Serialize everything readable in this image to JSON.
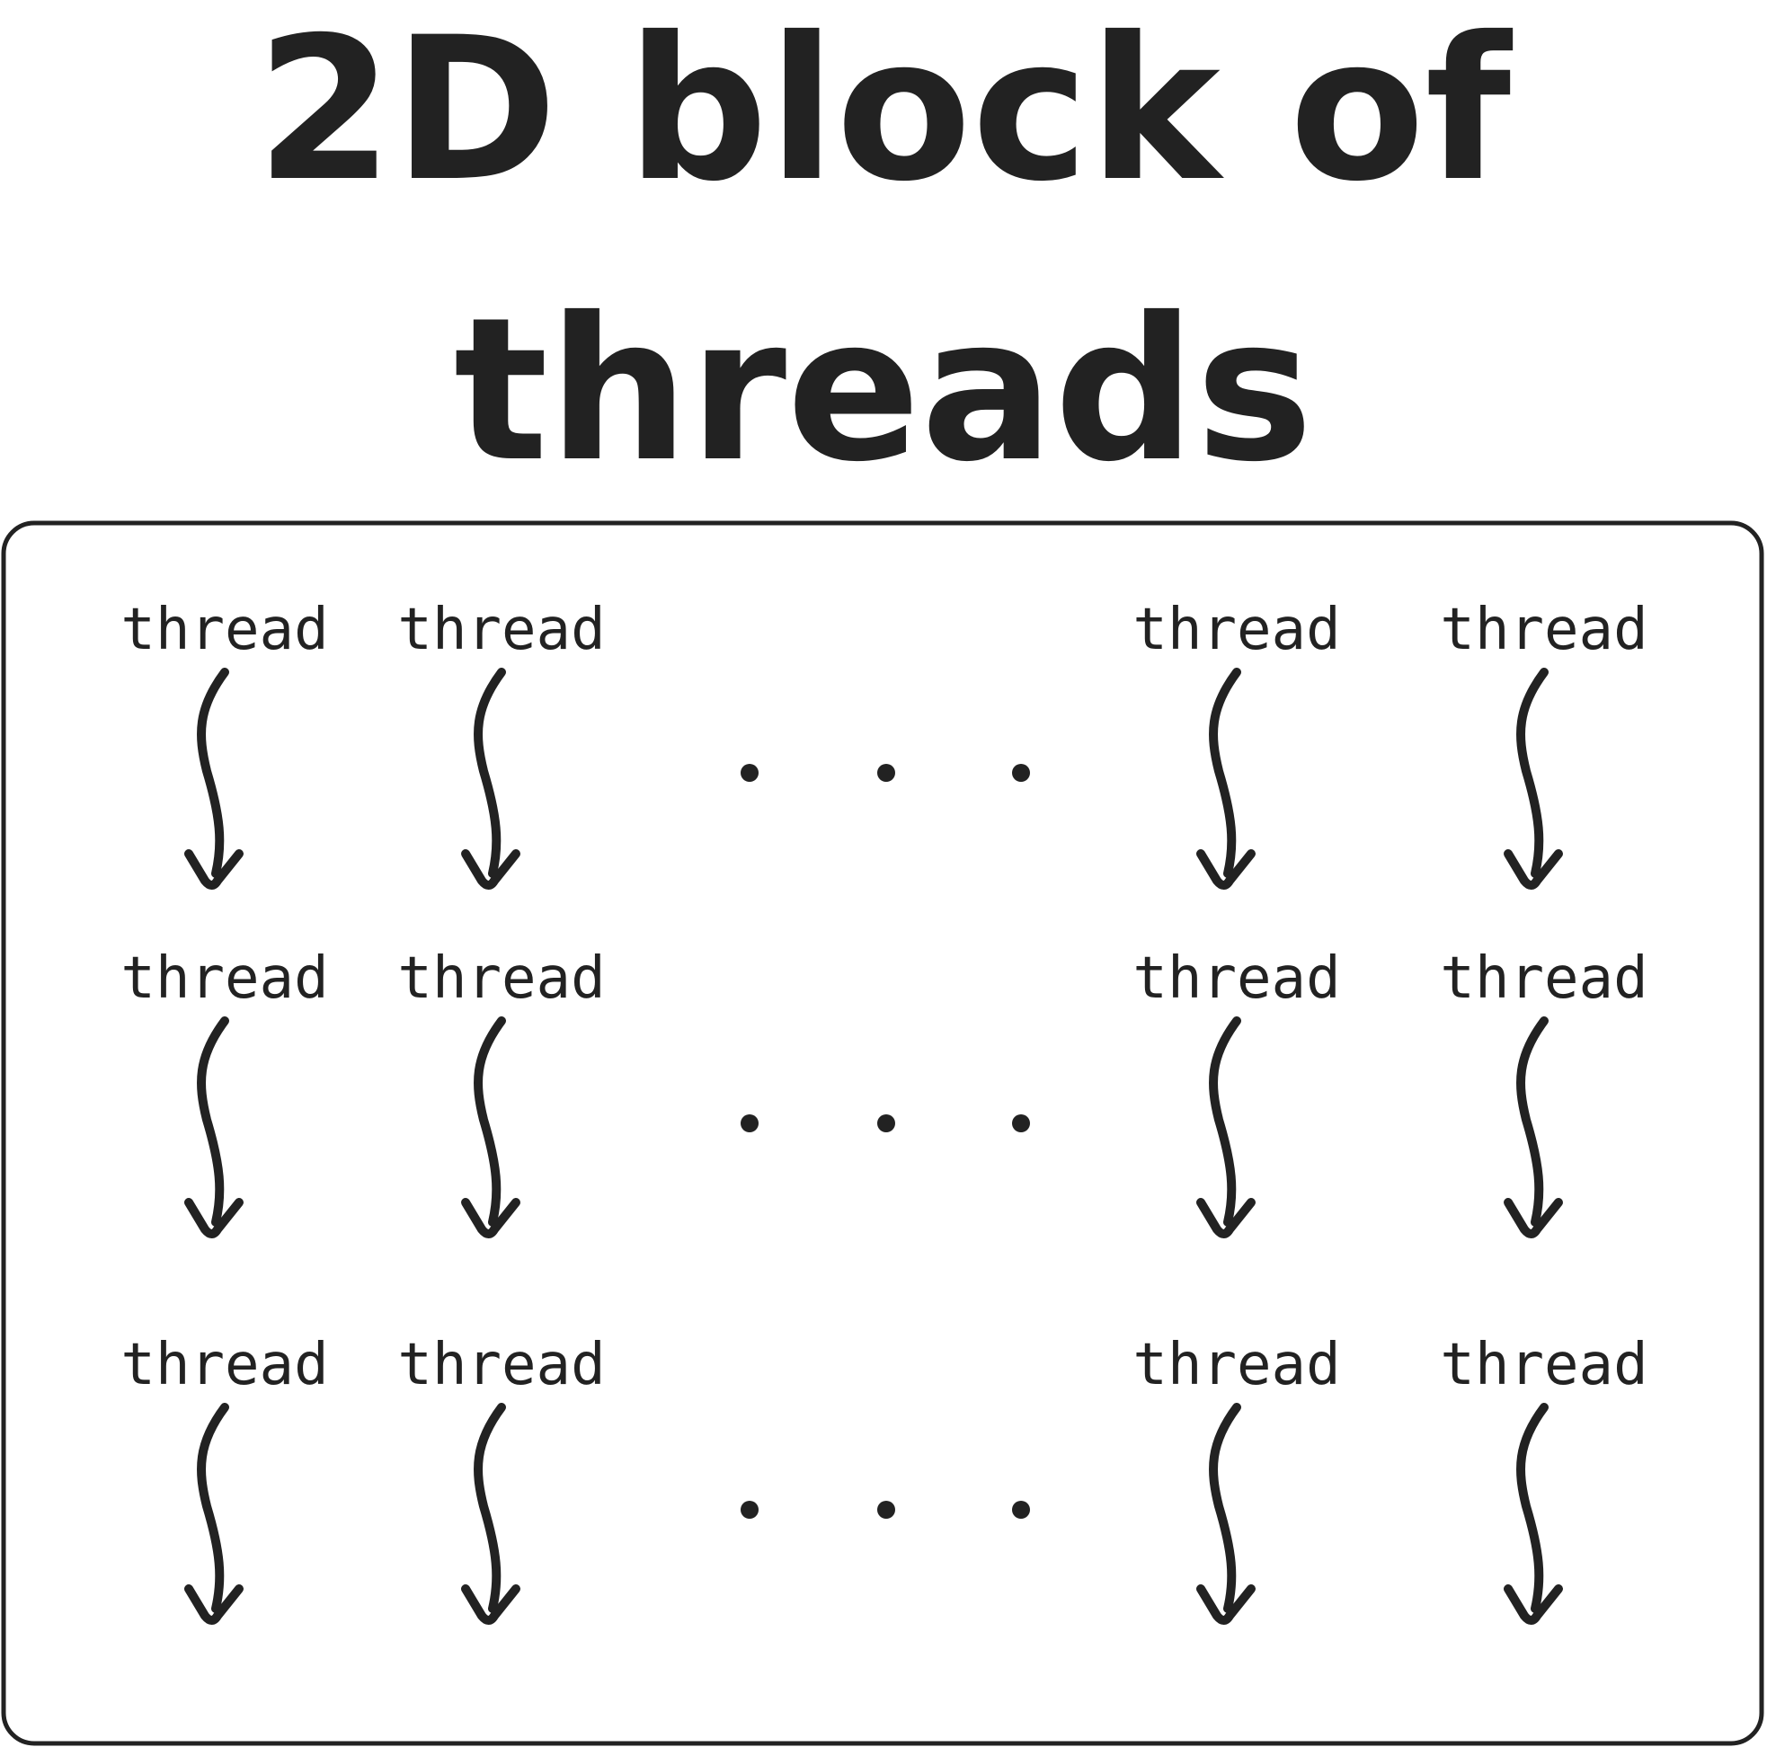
{
  "title": {
    "line1": "2D block of",
    "line2": "threads"
  },
  "block": {
    "rows": [
      {
        "threads": [
          {
            "label": "thread"
          },
          {
            "label": "thread"
          },
          {
            "label": "thread"
          },
          {
            "label": "thread"
          }
        ],
        "ellipsis": "..."
      },
      {
        "threads": [
          {
            "label": "thread"
          },
          {
            "label": "thread"
          },
          {
            "label": "thread"
          },
          {
            "label": "thread"
          }
        ],
        "ellipsis": "..."
      },
      {
        "threads": [
          {
            "label": "thread"
          },
          {
            "label": "thread"
          },
          {
            "label": "thread"
          },
          {
            "label": "thread"
          }
        ],
        "ellipsis": "..."
      }
    ]
  }
}
